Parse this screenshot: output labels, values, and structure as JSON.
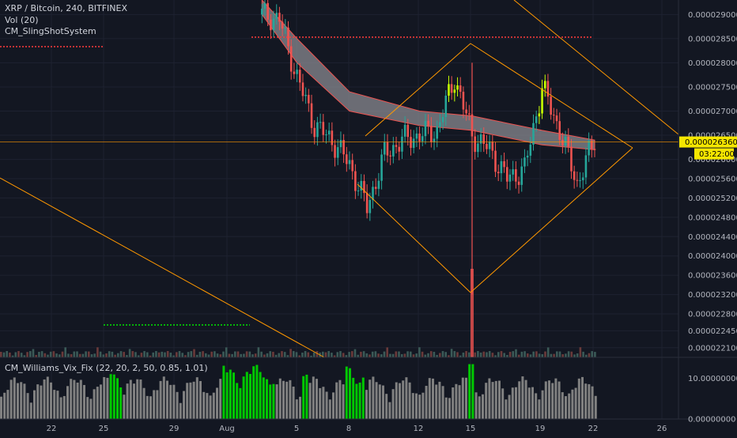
{
  "legend": {
    "symbol_line": "XRP / Bitcoin, 240, BITFINEX",
    "vol_label": "Vol (20)",
    "indicator_label": "CM_SlingShotSystem",
    "oscillator_label": "CM_Williams_Vix_Fix (22, 20, 2, 50, 0.85, 1.01)"
  },
  "colors": {
    "background": "#131722",
    "grid": "#1e2230",
    "up_candle": "#26a69a",
    "down_candle": "#ef5350",
    "lime_candle": "#c6ff00",
    "trendline": "#ff9800",
    "ribbon": "#8a8a90",
    "vix_gray": "#808080",
    "vix_green": "#00c800",
    "dotted_red": "#ff3b3b",
    "dotted_green": "#00e600",
    "price_tag_bg": "#f5e600"
  },
  "current_price": {
    "value": "0.000026360",
    "countdown": "03:22:00"
  },
  "chart_data": [
    {
      "type": "candlestick",
      "title": "XRP / Bitcoin, 240, BITFINEX",
      "y_ticks": [
        "0.000029000",
        "0.000028500",
        "0.000028000",
        "0.000027500",
        "0.000027000",
        "0.000026500",
        "0.000026000",
        "0.000025600",
        "0.000025200",
        "0.000024800",
        "0.000024400",
        "0.000024000",
        "0.000023600",
        "0.000023200",
        "0.000022800",
        "0.000022450",
        "0.000022100"
      ],
      "x_ticks": [
        "22",
        "25",
        "29",
        "Aug",
        "5",
        "8",
        "12",
        "15",
        "19",
        "22",
        "26"
      ],
      "ylim": [
        2.19e-05,
        2.93e-05
      ],
      "approx_close_path": [
        {
          "x": "Aug 3",
          "y": 2.9e-05
        },
        {
          "x": "Aug 4",
          "y": 2.89e-05
        },
        {
          "x": "Aug 5",
          "y": 2.77e-05
        },
        {
          "x": "Aug 6",
          "y": 2.67e-05
        },
        {
          "x": "Aug 7",
          "y": 2.64e-05
        },
        {
          "x": "Aug 8",
          "y": 2.59e-05
        },
        {
          "x": "Aug 9",
          "y": 2.5e-05
        },
        {
          "x": "Aug 10",
          "y": 2.61e-05
        },
        {
          "x": "Aug 11",
          "y": 2.64e-05
        },
        {
          "x": "Aug 12",
          "y": 2.65e-05
        },
        {
          "x": "Aug 13",
          "y": 2.66e-05
        },
        {
          "x": "Aug 14",
          "y": 2.77e-05
        },
        {
          "x": "Aug 15",
          "y": 2.65e-05
        },
        {
          "x": "Aug 16",
          "y": 2.62e-05
        },
        {
          "x": "Aug 17",
          "y": 2.56e-05
        },
        {
          "x": "Aug 18",
          "y": 2.58e-05
        },
        {
          "x": "Aug 19",
          "y": 2.75e-05
        },
        {
          "x": "Aug 20",
          "y": 2.66e-05
        },
        {
          "x": "Aug 21",
          "y": 2.55e-05
        },
        {
          "x": "Aug 22",
          "y": 2.64e-05
        }
      ],
      "ema_ribbon": [
        {
          "x": "Aug 3",
          "upper": 2.93e-05,
          "lower": 2.9e-05
        },
        {
          "x": "Aug 5",
          "upper": 2.85e-05,
          "lower": 2.8e-05
        },
        {
          "x": "Aug 8",
          "upper": 2.74e-05,
          "lower": 2.7e-05
        },
        {
          "x": "Aug 12",
          "upper": 2.7e-05,
          "lower": 2.67e-05
        },
        {
          "x": "Aug 15",
          "upper": 2.69e-05,
          "lower": 2.66e-05
        },
        {
          "x": "Aug 19",
          "upper": 2.66e-05,
          "lower": 2.63e-05
        },
        {
          "x": "Aug 22",
          "upper": 2.64e-05,
          "lower": 2.62e-05
        }
      ],
      "min_low": 2.32e-05,
      "volume_spike": "Aug 15"
    },
    {
      "type": "bar",
      "title": "CM_Williams_Vix_Fix (22, 20, 2, 50, 0.85, 1.01)",
      "y_ticks": [
        "10.00000000",
        "0.00000000"
      ],
      "ylim": [
        0,
        14
      ],
      "highlight_series": "green bars mark spikes around Jul 25, Aug 1-8 and Aug 15"
    }
  ]
}
